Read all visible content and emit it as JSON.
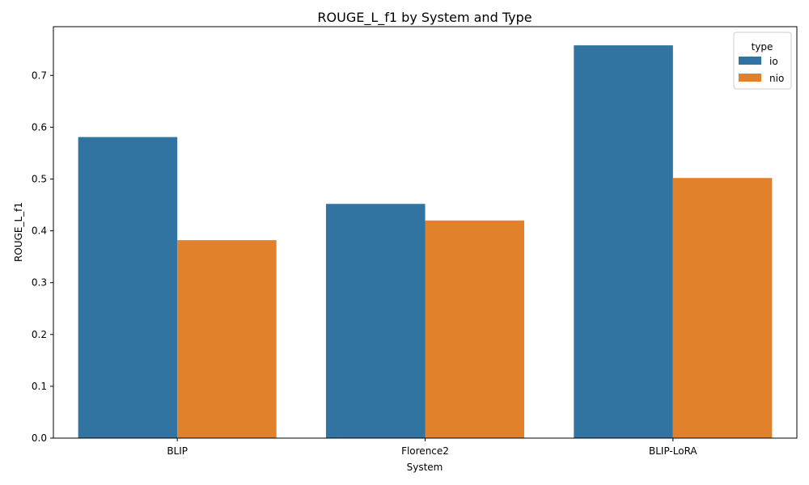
{
  "chart_data": {
    "type": "bar",
    "title": "ROUGE_L_f1 by System and Type",
    "xlabel": "System",
    "ylabel": "ROUGE_L_f1",
    "categories": [
      "BLIP",
      "Florence2",
      "BLIP-LoRA"
    ],
    "series": [
      {
        "name": "io",
        "color": "#3274a1",
        "values": [
          0.581,
          0.452,
          0.758
        ]
      },
      {
        "name": "nio",
        "color": "#e1812c",
        "values": [
          0.382,
          0.42,
          0.502
        ]
      }
    ],
    "ylim": [
      0,
      0.794
    ],
    "yticks": [
      "0.0",
      "0.1",
      "0.2",
      "0.3",
      "0.4",
      "0.5",
      "0.6",
      "0.7"
    ],
    "legend": {
      "title": "type",
      "placement": "top-right"
    },
    "grid": false
  }
}
